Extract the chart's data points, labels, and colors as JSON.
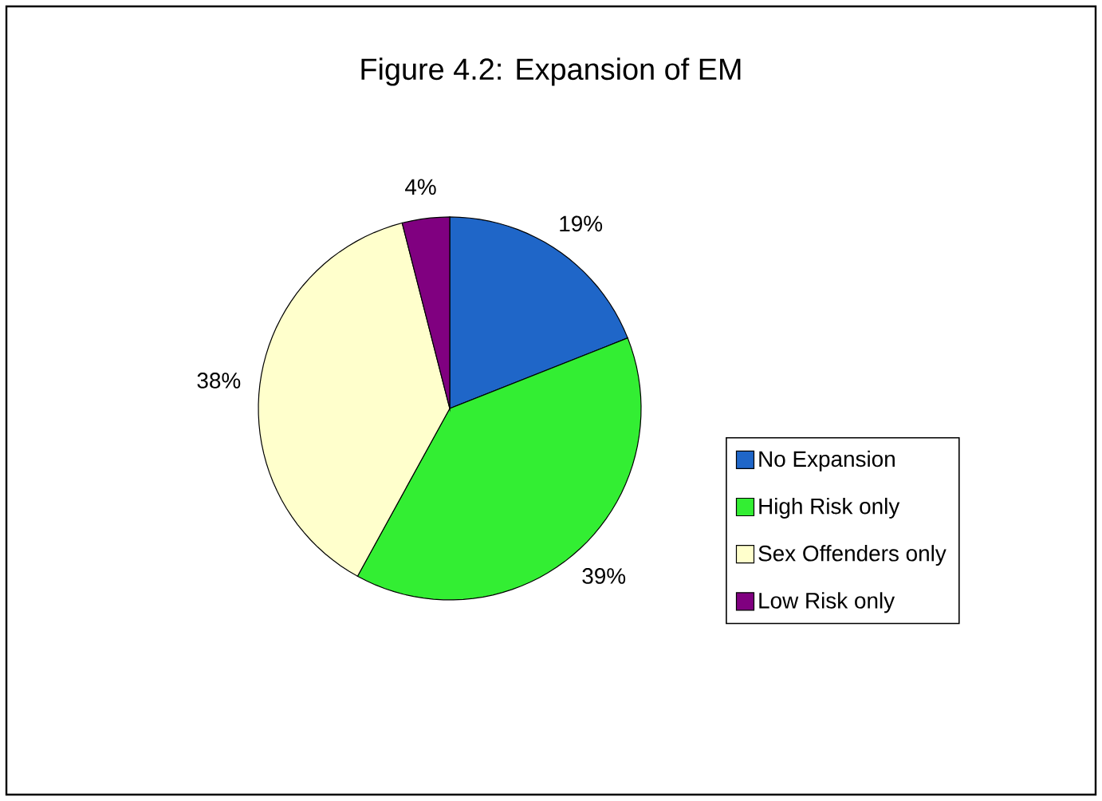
{
  "chart_data": {
    "type": "pie",
    "title": "Figure 4.2: Expansion of EM",
    "categories": [
      "No Expansion",
      "High Risk only",
      "Sex Offenders only",
      "Low Risk only"
    ],
    "values": [
      19,
      39,
      38,
      4
    ],
    "value_labels": [
      "19%",
      "39%",
      "38%",
      "4%"
    ],
    "colors": [
      "#1f66c8",
      "#33ee33",
      "#ffffcc",
      "#800080"
    ],
    "legend": "bottom right"
  }
}
